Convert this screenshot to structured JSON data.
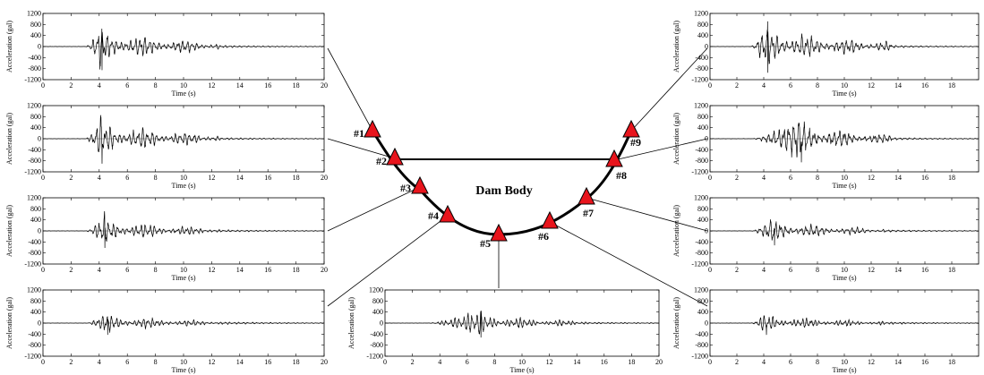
{
  "figure": {
    "dam_label": "Dam Body"
  },
  "stations": [
    {
      "id": "#1"
    },
    {
      "id": "#2"
    },
    {
      "id": "#3"
    },
    {
      "id": "#4"
    },
    {
      "id": "#5"
    },
    {
      "id": "#6"
    },
    {
      "id": "#7"
    },
    {
      "id": "#8"
    },
    {
      "id": "#9"
    }
  ],
  "chart_data": [
    {
      "type": "line",
      "station": "#1",
      "ylabel": "Acceleration (gal)",
      "xlabel": "Time (s)",
      "xlim": [
        0,
        20
      ],
      "ylim": [
        -1200,
        1200
      ],
      "xticks": [
        0,
        2,
        4,
        6,
        8,
        10,
        12,
        14,
        16,
        18,
        20
      ],
      "yticks": [
        1200,
        800,
        400,
        0,
        -400,
        -800,
        -1200
      ],
      "envelope": {
        "onset_s": 3.0,
        "peak_time_s": 4.2,
        "peak_gal": 900,
        "decay_end_s": 12.5
      }
    },
    {
      "type": "line",
      "station": "#2",
      "ylabel": "Acceleration (gal)",
      "xlabel": "Time (s)",
      "xlim": [
        0,
        20
      ],
      "ylim": [
        -1200,
        1200
      ],
      "xticks": [
        0,
        2,
        4,
        6,
        8,
        10,
        12,
        14,
        16,
        18,
        20
      ],
      "yticks": [
        1200,
        800,
        400,
        0,
        -400,
        -800,
        -1200
      ],
      "envelope": {
        "onset_s": 3.0,
        "peak_time_s": 4.2,
        "peak_gal": 950,
        "decay_end_s": 12.5
      }
    },
    {
      "type": "line",
      "station": "#3",
      "ylabel": "Acceleration (gal)",
      "xlabel": "Time (s)",
      "xlim": [
        0,
        20
      ],
      "ylim": [
        -1200,
        1200
      ],
      "xticks": [
        0,
        2,
        4,
        6,
        8,
        10,
        12,
        14,
        16,
        18,
        20
      ],
      "yticks": [
        1200,
        800,
        400,
        0,
        -400,
        -800,
        -1200
      ],
      "envelope": {
        "onset_s": 3.0,
        "peak_time_s": 4.4,
        "peak_gal": 650,
        "decay_end_s": 12.5
      }
    },
    {
      "type": "line",
      "station": "#4",
      "ylabel": "Acceleration (gal)",
      "xlabel": "Time (s)",
      "xlim": [
        0,
        20
      ],
      "ylim": [
        -1200,
        1200
      ],
      "xticks": [
        0,
        2,
        4,
        6,
        8,
        10,
        12,
        14,
        16,
        18,
        20
      ],
      "yticks": [
        1200,
        800,
        400,
        0,
        -400,
        -800,
        -1200
      ],
      "envelope": {
        "onset_s": 3.0,
        "peak_time_s": 4.6,
        "peak_gal": 450,
        "decay_end_s": 13.0
      }
    },
    {
      "type": "line",
      "station": "#5",
      "ylabel": "Acceleration (gal)",
      "xlabel": "Time (s)",
      "xlim": [
        0,
        20
      ],
      "ylim": [
        -1200,
        1200
      ],
      "xticks": [
        0,
        2,
        4,
        6,
        8,
        10,
        12,
        14,
        16,
        18,
        20
      ],
      "yticks": [
        1200,
        800,
        400,
        0,
        -400,
        -800,
        -1200
      ],
      "envelope": {
        "onset_s": 3.0,
        "peak_time_s": 7.0,
        "peak_gal": 550,
        "decay_end_s": 14.0
      }
    },
    {
      "type": "line",
      "station": "#6",
      "ylabel": "Acceleration (gal)",
      "xlabel": "Time (s)",
      "xlim": [
        0,
        20
      ],
      "ylim": [
        -1200,
        1200
      ],
      "xticks": [
        0,
        2,
        4,
        6,
        8,
        10,
        12,
        14,
        16,
        18
      ],
      "yticks": [
        1200,
        800,
        400,
        0,
        -400,
        -800,
        -1200
      ],
      "envelope": {
        "onset_s": 3.0,
        "peak_time_s": 4.2,
        "peak_gal": 450,
        "decay_end_s": 13.0
      }
    },
    {
      "type": "line",
      "station": "#7",
      "ylabel": "Acceleration (gal)",
      "xlabel": "Time (s)",
      "xlim": [
        0,
        20
      ],
      "ylim": [
        -1200,
        1200
      ],
      "xticks": [
        0,
        2,
        4,
        6,
        8,
        10,
        12,
        14,
        16,
        18
      ],
      "yticks": [
        1200,
        800,
        400,
        0,
        -400,
        -800,
        -1200
      ],
      "envelope": {
        "onset_s": 3.0,
        "peak_time_s": 4.8,
        "peak_gal": 550,
        "decay_end_s": 13.0
      }
    },
    {
      "type": "line",
      "station": "#8",
      "ylabel": "Acceleration (gal)",
      "xlabel": "Time (s)",
      "xlim": [
        0,
        20
      ],
      "ylim": [
        -1200,
        1200
      ],
      "xticks": [
        0,
        2,
        4,
        6,
        8,
        10,
        12,
        14,
        16,
        18
      ],
      "yticks": [
        1200,
        800,
        400,
        0,
        -400,
        -800,
        -1200
      ],
      "envelope": {
        "onset_s": 3.0,
        "peak_time_s": 6.8,
        "peak_gal": 900,
        "decay_end_s": 13.5
      }
    },
    {
      "type": "line",
      "station": "#9",
      "ylabel": "Acceleration (gal)",
      "xlabel": "Time (s)",
      "xlim": [
        0,
        20
      ],
      "ylim": [
        -1200,
        1200
      ],
      "xticks": [
        0,
        2,
        4,
        6,
        8,
        10,
        12,
        14,
        16,
        18
      ],
      "yticks": [
        1200,
        800,
        400,
        0,
        -400,
        -800,
        -1200
      ],
      "envelope": {
        "onset_s": 3.0,
        "peak_time_s": 4.3,
        "peak_gal": 1000,
        "decay_end_s": 13.5
      }
    }
  ],
  "colors": {
    "marker_fill": "#e8141c",
    "marker_stroke": "#000000",
    "line": "#000000"
  }
}
